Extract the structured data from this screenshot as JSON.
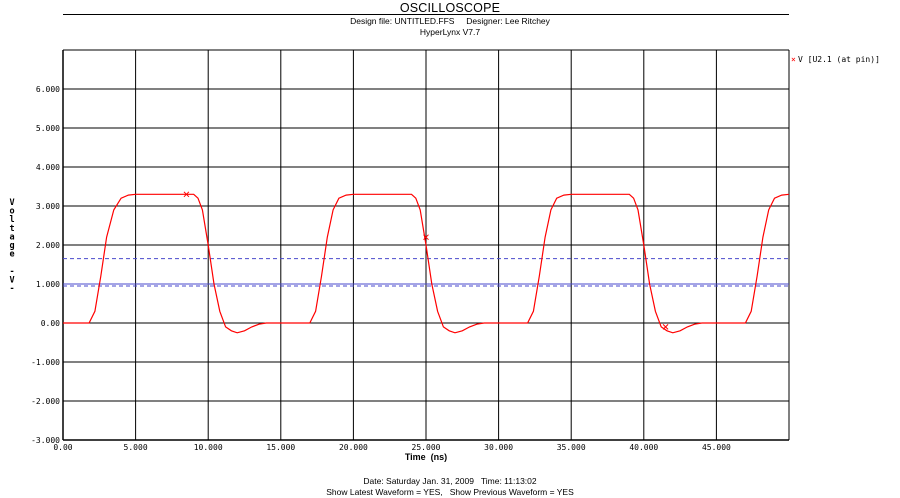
{
  "header": {
    "title": "OSCILLOSCOPE",
    "design_line": "Design file: UNTITLED.FFS     Designer: Lee Ritchey",
    "version_line": "HyperLynx V7.7"
  },
  "footer": {
    "date_line": "Date: Saturday Jan. 31, 2009   Time: 11:13:02",
    "show_line": "Show Latest Waveform = YES,   Show Previous Waveform = YES"
  },
  "colors": {
    "trace": "#ff0000",
    "grid": "#000000",
    "threshold": "#4a4acc",
    "background": "#ffffff"
  },
  "chart_data": {
    "type": "line",
    "title": "OSCILLOSCOPE",
    "xlabel": "Time  (ns)",
    "ylabel": "Voltage -V-",
    "xlim": [
      0,
      50
    ],
    "ylim": [
      -3,
      7
    ],
    "x_ticks": [
      0,
      5,
      10,
      15,
      20,
      25,
      30,
      35,
      40,
      45
    ],
    "x_tick_labels": [
      "0.00",
      "5.000",
      "10.000",
      "15.000",
      "20.000",
      "25.000",
      "30.000",
      "35.000",
      "40.000",
      "45.000"
    ],
    "y_ticks": [
      -3,
      -2,
      -1,
      0,
      1,
      2,
      3,
      4,
      5,
      6
    ],
    "y_tick_labels": [
      "-3.000",
      "-2.000",
      "-1.000",
      "0.00",
      "1.000",
      "2.000",
      "3.000",
      "4.000",
      "5.000",
      "6.000"
    ],
    "grid": true,
    "legend_position": "top-right",
    "thresholds": [
      {
        "y": 1.65,
        "style": "dashed"
      },
      {
        "y": 1.0,
        "style": "solid"
      },
      {
        "y": 0.95,
        "style": "dashed"
      }
    ],
    "series": [
      {
        "name": "V [U2.1 (at pin)]",
        "marker": "x",
        "x": [
          0.0,
          1.8,
          2.2,
          2.6,
          3.0,
          3.5,
          4.0,
          4.5,
          5.0,
          6.0,
          7.0,
          8.0,
          9.0,
          9.3,
          9.6,
          10.0,
          10.4,
          10.8,
          11.2,
          11.6,
          12.0,
          12.5,
          13.0,
          13.5,
          14.0,
          17.0,
          17.4,
          17.8,
          18.2,
          18.6,
          19.0,
          19.5,
          20.0,
          21.0,
          22.0,
          23.0,
          24.0,
          24.3,
          24.6,
          25.0,
          25.4,
          25.8,
          26.2,
          26.6,
          27.0,
          27.5,
          28.0,
          28.5,
          29.0,
          32.0,
          32.4,
          32.8,
          33.2,
          33.6,
          34.0,
          34.5,
          35.0,
          36.0,
          37.0,
          38.0,
          39.0,
          39.3,
          39.6,
          40.0,
          40.4,
          40.8,
          41.2,
          41.6,
          42.0,
          42.5,
          43.0,
          43.5,
          44.0,
          47.0,
          47.4,
          47.8,
          48.2,
          48.6,
          49.0,
          49.5,
          50.0
        ],
        "y": [
          0.0,
          0.0,
          0.3,
          1.2,
          2.2,
          2.9,
          3.2,
          3.28,
          3.3,
          3.3,
          3.3,
          3.3,
          3.3,
          3.2,
          2.9,
          2.0,
          1.0,
          0.3,
          -0.1,
          -0.2,
          -0.25,
          -0.2,
          -0.1,
          -0.03,
          0.0,
          0.0,
          0.3,
          1.2,
          2.2,
          2.9,
          3.2,
          3.28,
          3.3,
          3.3,
          3.3,
          3.3,
          3.3,
          3.2,
          2.9,
          2.0,
          1.0,
          0.3,
          -0.1,
          -0.2,
          -0.25,
          -0.2,
          -0.1,
          -0.03,
          0.0,
          0.0,
          0.3,
          1.2,
          2.2,
          2.9,
          3.2,
          3.28,
          3.3,
          3.3,
          3.3,
          3.3,
          3.3,
          3.2,
          2.9,
          2.0,
          1.0,
          0.3,
          -0.1,
          -0.2,
          -0.25,
          -0.2,
          -0.1,
          -0.03,
          0.0,
          0.0,
          0.3,
          1.2,
          2.2,
          2.9,
          3.2,
          3.28,
          3.3
        ],
        "marker_points": [
          [
            8.5,
            3.3
          ],
          [
            25.0,
            2.2
          ],
          [
            41.5,
            -0.1
          ]
        ]
      }
    ]
  }
}
